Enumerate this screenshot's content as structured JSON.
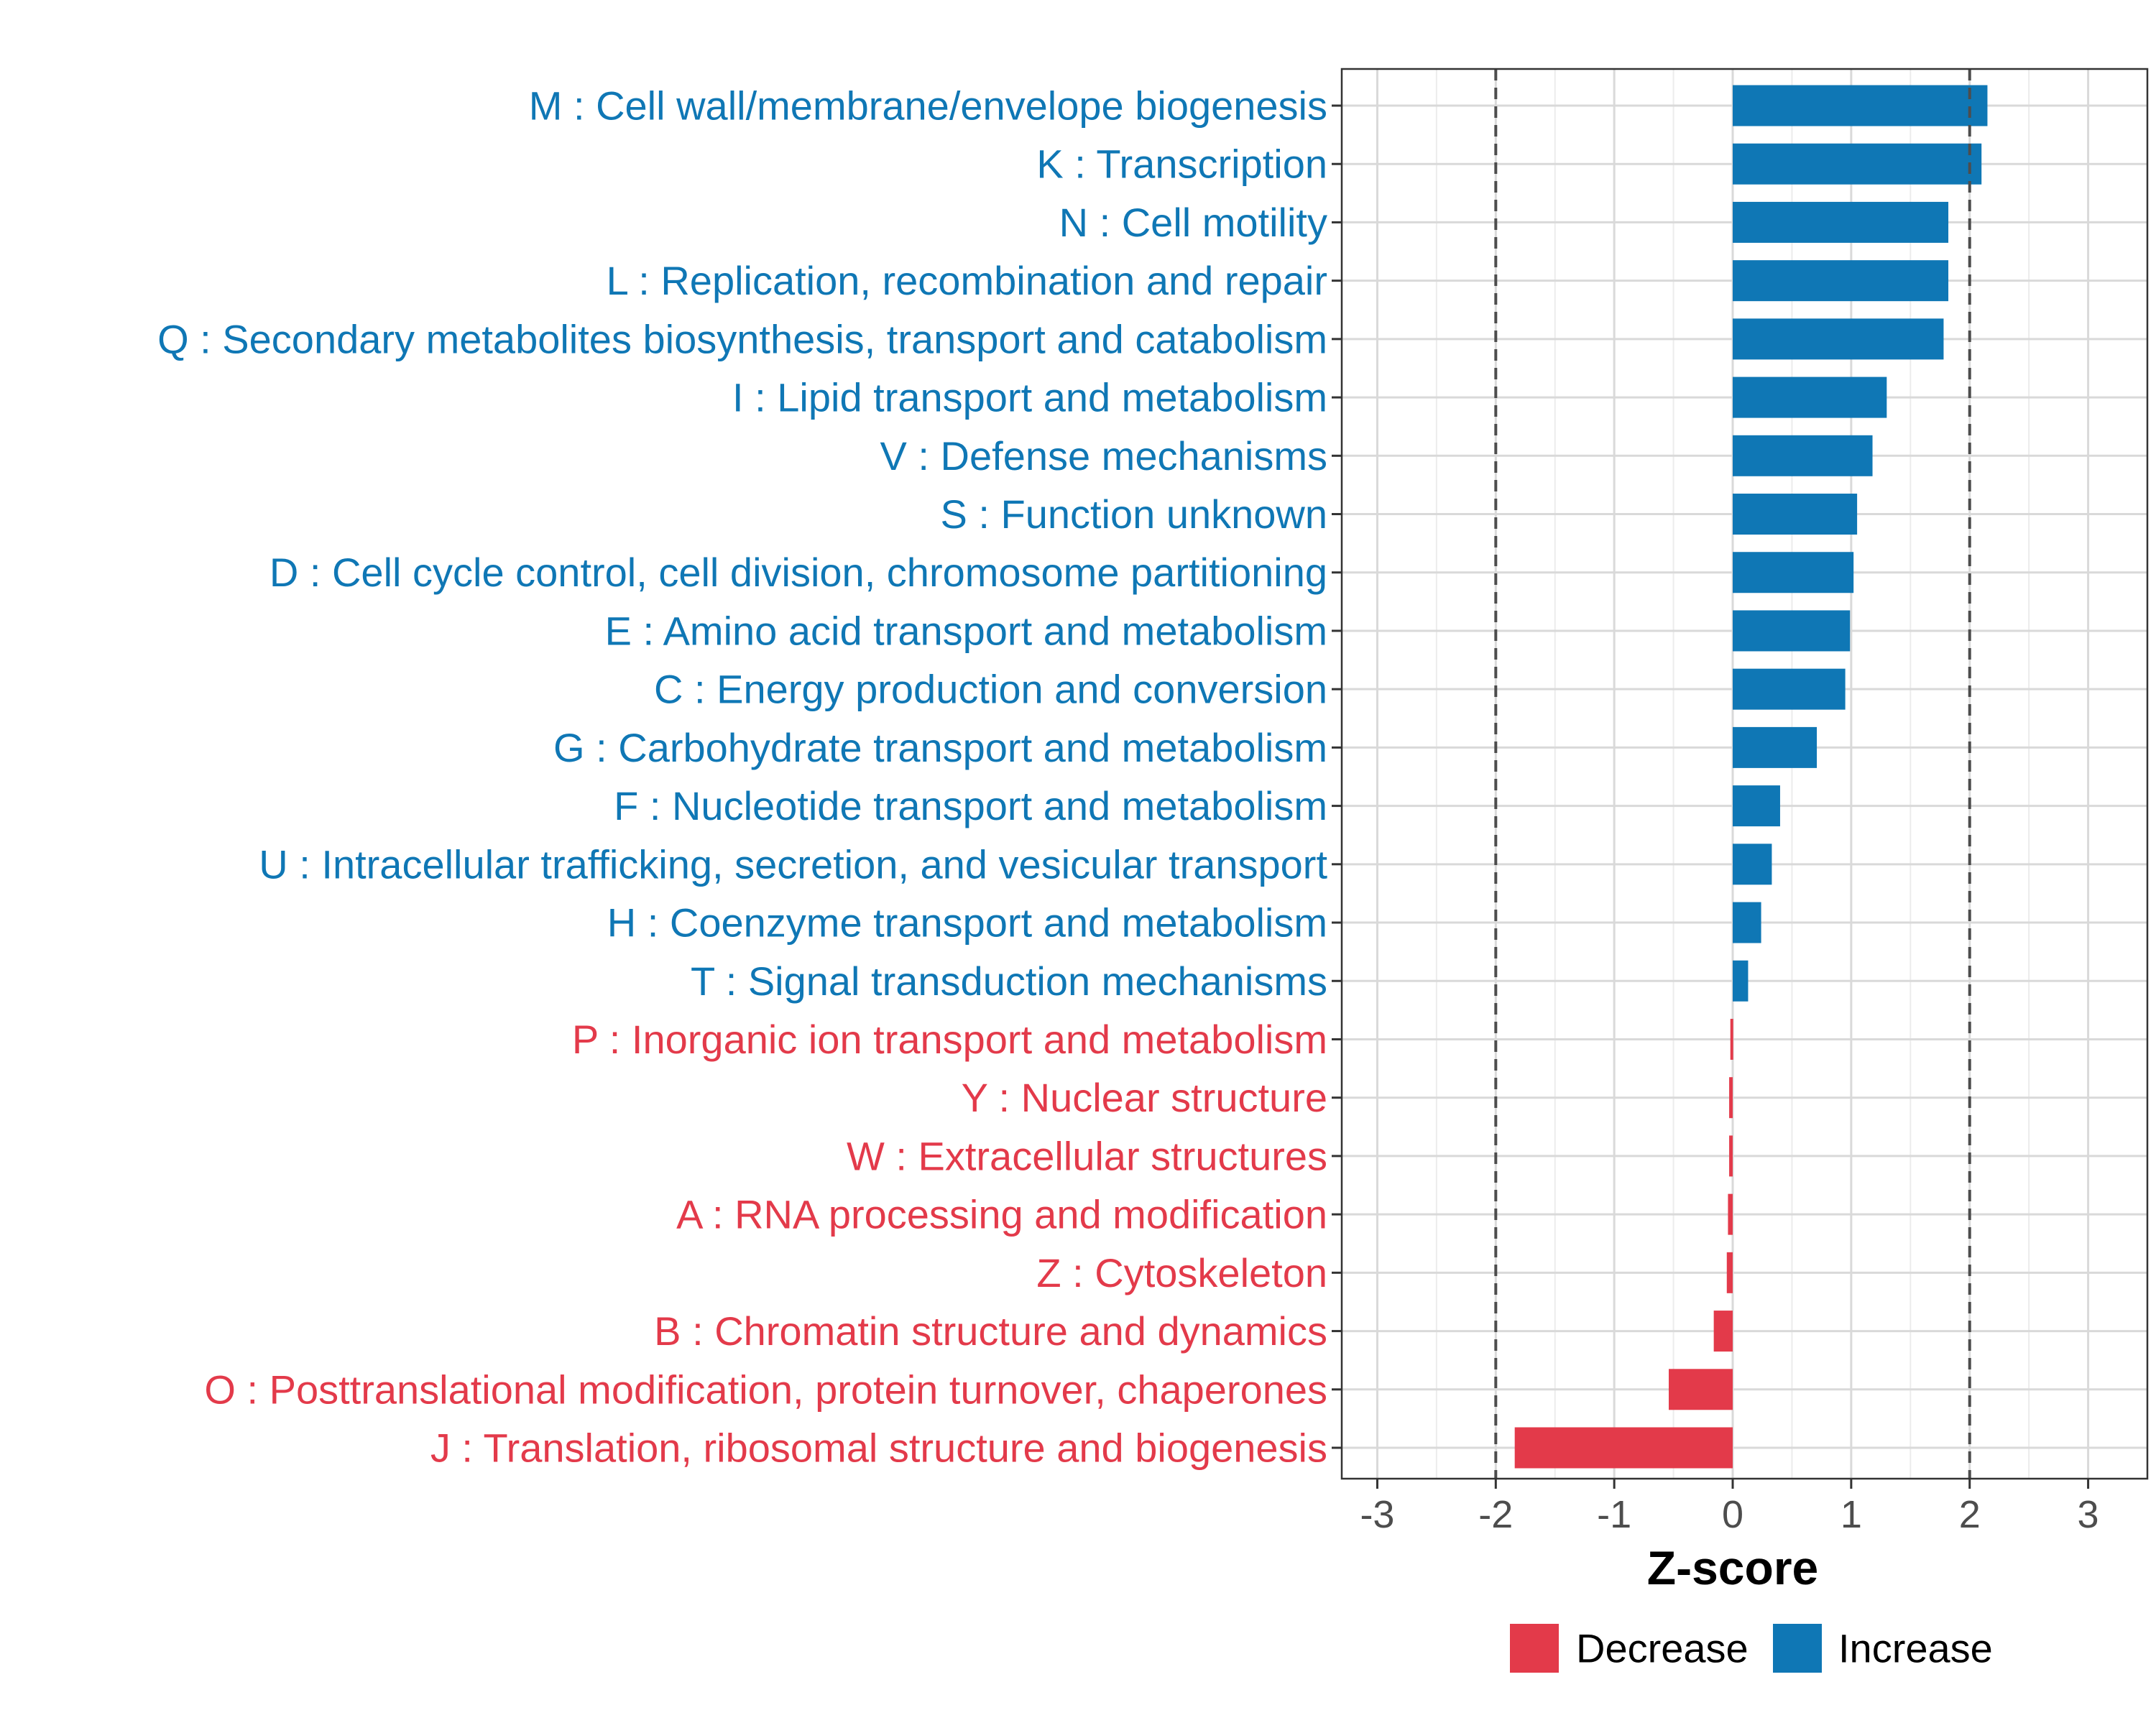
{
  "chart_data": {
    "type": "bar",
    "orientation": "horizontal",
    "xlabel": "Z-score",
    "ylabel": "",
    "xlim": [
      -3.3,
      3.5
    ],
    "xticks": [
      -3,
      -2,
      -1,
      0,
      1,
      2,
      3
    ],
    "xtick_labels": [
      "-3",
      "-2",
      "-1",
      "0",
      "1",
      "2",
      "3"
    ],
    "reference_lines": [
      -2,
      2
    ],
    "grid": true,
    "legend_position": "bottom",
    "colors": {
      "Increase": "#0f77b5",
      "Decrease": "#e33a4a"
    },
    "legend": [
      {
        "name": "Decrease",
        "color": "#e33a4a"
      },
      {
        "name": "Increase",
        "color": "#0f77b5"
      }
    ],
    "categories": [
      "M : Cell wall/membrane/envelope biogenesis",
      "K : Transcription",
      "N : Cell motility",
      "L : Replication, recombination and repair",
      "Q : Secondary metabolites biosynthesis, transport and catabolism",
      "I : Lipid transport and metabolism",
      "V : Defense mechanisms",
      "S : Function unknown",
      "D : Cell cycle control, cell division, chromosome partitioning",
      "E : Amino acid transport and metabolism",
      "C : Energy production and conversion",
      "G : Carbohydrate transport and metabolism",
      "F : Nucleotide transport and metabolism",
      "U : Intracellular trafficking, secretion, and vesicular transport",
      "H : Coenzyme transport and metabolism",
      "T : Signal transduction mechanisms",
      "P : Inorganic ion transport and metabolism",
      "Y : Nuclear structure",
      "W : Extracellular structures",
      "A : RNA processing and modification",
      "Z : Cytoskeleton",
      "B : Chromatin structure and dynamics",
      "O : Posttranslational modification, protein turnover, chaperones",
      "J : Translation, ribosomal structure and biogenesis"
    ],
    "values": [
      2.15,
      2.1,
      1.82,
      1.82,
      1.78,
      1.3,
      1.18,
      1.05,
      1.02,
      0.99,
      0.95,
      0.71,
      0.4,
      0.33,
      0.24,
      0.13,
      -0.02,
      -0.03,
      -0.03,
      -0.04,
      -0.05,
      -0.16,
      -0.54,
      -1.84
    ],
    "groups": [
      "Increase",
      "Increase",
      "Increase",
      "Increase",
      "Increase",
      "Increase",
      "Increase",
      "Increase",
      "Increase",
      "Increase",
      "Increase",
      "Increase",
      "Increase",
      "Increase",
      "Increase",
      "Increase",
      "Decrease",
      "Decrease",
      "Decrease",
      "Decrease",
      "Decrease",
      "Decrease",
      "Decrease",
      "Decrease"
    ]
  }
}
